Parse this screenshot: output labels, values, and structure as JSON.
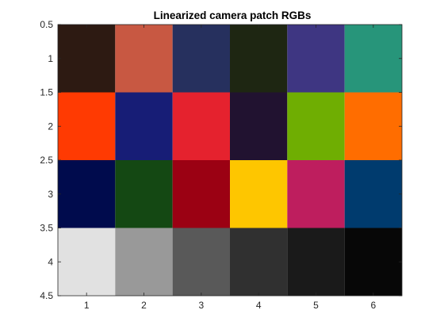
{
  "chart_data": {
    "type": "heatmap",
    "title": "Linearized camera patch RGBs",
    "xlabel": "",
    "ylabel": "",
    "xlim": [
      0.5,
      6.5
    ],
    "ylim": [
      0.5,
      4.5
    ],
    "y_direction": "reversed",
    "grid": false,
    "x_ticks": [
      "1",
      "2",
      "3",
      "4",
      "5",
      "6"
    ],
    "y_ticks": [
      "0.5",
      "1",
      "1.5",
      "2",
      "2.5",
      "3",
      "3.5",
      "4",
      "4.5"
    ],
    "rows": [
      [
        "#2d1a12",
        "#c85842",
        "#26305e",
        "#1e2612",
        "#3e3682",
        "#27957a"
      ],
      [
        "#ff3a02",
        "#171d76",
        "#e5222e",
        "#211230",
        "#6fae02",
        "#ff6d00"
      ],
      [
        "#000b4d",
        "#144813",
        "#9b0113",
        "#fec600",
        "#be1e5e",
        "#003b6e"
      ],
      [
        "#e1e1e1",
        "#999999",
        "#595959",
        "#303030",
        "#1a1a1a",
        "#070707"
      ]
    ]
  }
}
